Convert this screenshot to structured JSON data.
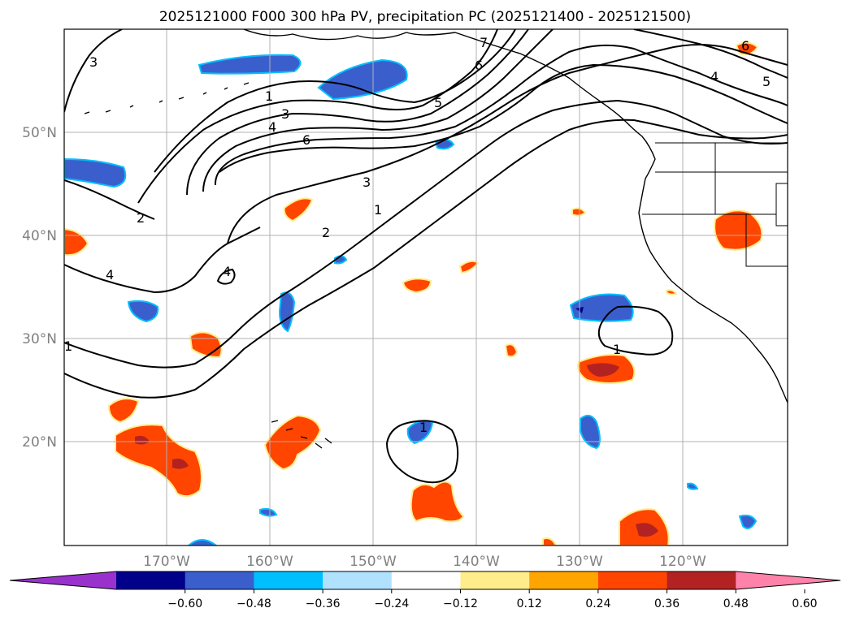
{
  "title": "2025121000 F000 300 hPa PV, precipitation PC (2025121400 - 2025121500)",
  "lon_ticks": [
    "170°W",
    "160°W",
    "150°W",
    "140°W",
    "130°W",
    "120°W"
  ],
  "lat_ticks": [
    "50°N",
    "40°N",
    "30°N",
    "20°N"
  ],
  "contour_labels": [
    "3",
    "1",
    "3",
    "4",
    "6",
    "7",
    "6",
    "5",
    "4",
    "5",
    "6",
    "2",
    "4",
    "4",
    "2",
    "1",
    "3",
    "1",
    "1",
    "1"
  ],
  "colorbar": {
    "ticks": [
      "−0.60",
      "−0.48",
      "−0.36",
      "−0.24",
      "−0.12",
      "0.12",
      "0.24",
      "0.36",
      "0.48",
      "0.60"
    ],
    "colors": [
      "#9932cc",
      "#00008b",
      "#3a5fcd",
      "#00bfff",
      "#b0e2ff",
      "#ffffff",
      "#ffec8b",
      "#ffa500",
      "#ff4500",
      "#b22222",
      "#ff82ab"
    ]
  }
}
